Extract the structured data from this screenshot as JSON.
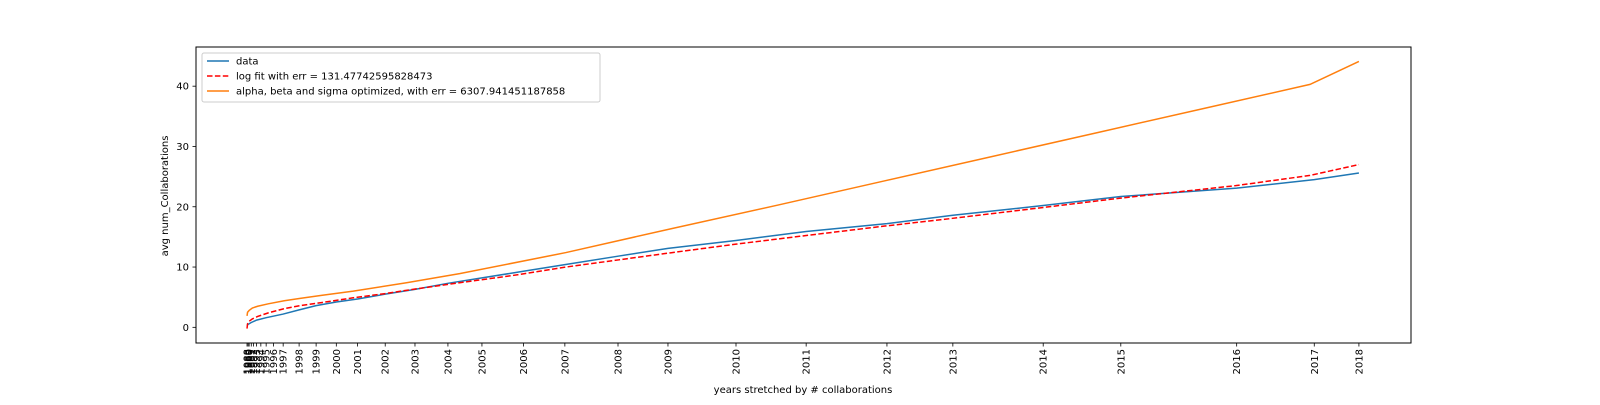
{
  "chart_data": {
    "type": "line",
    "title": "",
    "xlabel": "years stretched by # collaborations",
    "ylabel": "avg num_Collaborations",
    "ylim": [
      -2.6,
      46.5
    ],
    "yticks": [
      0,
      10,
      20,
      30,
      40
    ],
    "grid": false,
    "legend_position": "top-left",
    "x_note": "x positions are stretched cumulative collaboration counts; tick labels are years",
    "xlim": [
      -4.8,
      109.5
    ],
    "xticks": [
      {
        "label": "1988",
        "pos": 0.0
      },
      {
        "label": "1989",
        "pos": 0.1
      },
      {
        "label": "1990",
        "pos": 0.2
      },
      {
        "label": "1991",
        "pos": 0.4
      },
      {
        "label": "1992",
        "pos": 0.6
      },
      {
        "label": "1993",
        "pos": 0.9
      },
      {
        "label": "1994",
        "pos": 1.3
      },
      {
        "label": "1995",
        "pos": 1.8
      },
      {
        "label": "1996",
        "pos": 2.5
      },
      {
        "label": "1997",
        "pos": 3.4
      },
      {
        "label": "1998",
        "pos": 4.9
      },
      {
        "label": "1999",
        "pos": 6.5
      },
      {
        "label": "2000",
        "pos": 8.4
      },
      {
        "label": "2001",
        "pos": 10.4
      },
      {
        "label": "2002",
        "pos": 13.0
      },
      {
        "label": "2003",
        "pos": 15.8
      },
      {
        "label": "2004",
        "pos": 18.9
      },
      {
        "label": "2005",
        "pos": 22.1
      },
      {
        "label": "2006",
        "pos": 26.0
      },
      {
        "label": "2007",
        "pos": 29.9
      },
      {
        "label": "2008",
        "pos": 34.9
      },
      {
        "label": "2009",
        "pos": 39.6
      },
      {
        "label": "2010",
        "pos": 46.0
      },
      {
        "label": "2011",
        "pos": 52.6
      },
      {
        "label": "2012",
        "pos": 60.2
      },
      {
        "label": "2013",
        "pos": 66.4
      },
      {
        "label": "2014",
        "pos": 74.9
      },
      {
        "label": "2015",
        "pos": 82.2
      },
      {
        "label": "2016",
        "pos": 93.1
      },
      {
        "label": "2017",
        "pos": 100.4
      },
      {
        "label": "2018",
        "pos": 104.6
      }
    ],
    "series": [
      {
        "name": "data",
        "color": "#1f77b4",
        "style": "solid",
        "x": [
          0.0,
          0.1,
          0.4,
          0.9,
          1.8,
          3.4,
          4.9,
          6.5,
          8.4,
          10.4,
          13.0,
          15.8,
          18.9,
          22.1,
          26.0,
          29.9,
          34.9,
          39.6,
          46.0,
          52.6,
          60.2,
          66.4,
          74.9,
          82.2,
          93.1,
          100.4,
          104.6
        ],
        "y": [
          0.3,
          0.5,
          0.8,
          1.2,
          1.6,
          2.2,
          2.9,
          3.6,
          4.2,
          4.7,
          5.5,
          6.3,
          7.3,
          8.2,
          9.3,
          10.4,
          11.8,
          13.1,
          14.4,
          15.9,
          17.2,
          18.6,
          20.2,
          21.7,
          23.1,
          24.5,
          25.6
        ]
      },
      {
        "name": "log fit with err = 131.47742595828473",
        "color": "#ff0000",
        "style": "dashed",
        "x": [
          0.0,
          0.05,
          0.2,
          0.5,
          1.0,
          2.0,
          3.5,
          5.0,
          7.0,
          10.0,
          13.0,
          16.0,
          20.0,
          25.0,
          30.0,
          35.0,
          40.0,
          46.0,
          52.0,
          60.0,
          66.0,
          75.0,
          82.0,
          93.0,
          100.0,
          104.6
        ],
        "y": [
          -0.2,
          0.6,
          1.0,
          1.4,
          1.8,
          2.4,
          3.1,
          3.6,
          4.1,
          4.9,
          5.6,
          6.4,
          7.4,
          8.6,
          10.0,
          11.2,
          12.4,
          13.8,
          15.1,
          16.8,
          18.0,
          19.9,
          21.4,
          23.5,
          25.2,
          27.0
        ]
      },
      {
        "name": "alpha, beta and sigma optimized, with err = 6307.941451187858",
        "color": "#ff7f0e",
        "style": "solid",
        "x": [
          0.0,
          0.05,
          0.2,
          0.5,
          1.0,
          2.0,
          3.5,
          5.0,
          7.0,
          10.0,
          15.0,
          20.0,
          30.0,
          40.0,
          50.0,
          60.0,
          70.0,
          80.0,
          90.0,
          100.0,
          104.6
        ],
        "y": [
          1.9,
          2.5,
          2.8,
          3.2,
          3.5,
          3.9,
          4.4,
          4.8,
          5.3,
          6.0,
          7.4,
          8.9,
          12.4,
          16.4,
          20.3,
          24.3,
          28.3,
          32.3,
          36.3,
          40.3,
          44.1
        ]
      }
    ]
  }
}
